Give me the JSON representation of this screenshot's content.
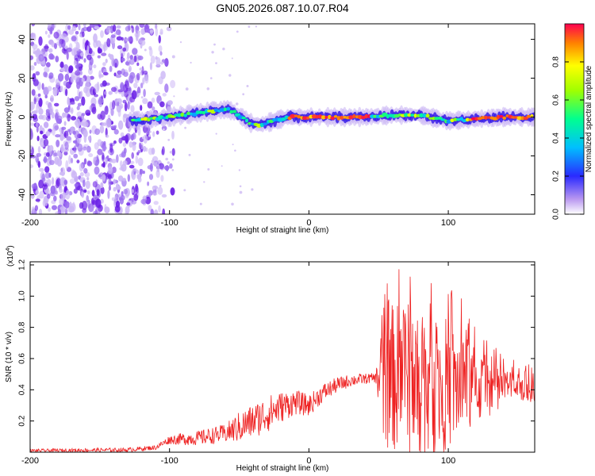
{
  "title": "GN05.2026.087.10.07.R04",
  "colors": {
    "series": "#ee2222",
    "axis": "#000000",
    "background": "#ffffff"
  },
  "chart_data": [
    {
      "type": "heatmap",
      "title": "GN05.2026.087.10.07.R04",
      "xlabel": "Height of straight line (km)",
      "ylabel": "Frequency (Hz)",
      "xlim": [
        -200,
        162
      ],
      "ylim": [
        -50,
        48
      ],
      "xticks": [
        -200,
        -100,
        0,
        100
      ],
      "yticks": [
        -40,
        -20,
        0,
        20,
        40
      ],
      "colorbar": {
        "label": "Normalized spectral amplitude",
        "range": [
          0,
          1
        ],
        "ticks": [
          0.0,
          0.2,
          0.4,
          0.6,
          0.8
        ]
      },
      "ridge": {
        "x": [
          -128,
          -110,
          -90,
          -70,
          -58,
          -50,
          -42,
          -35,
          -25,
          -15,
          -5,
          5,
          20,
          40,
          60,
          80,
          100,
          120,
          140,
          162
        ],
        "freq": [
          -2,
          -1,
          1,
          3,
          4,
          1,
          -3,
          -4,
          -2,
          0,
          0,
          0,
          0,
          0,
          1,
          1,
          -2,
          -1,
          0,
          0
        ]
      },
      "noise_region_x": [
        -200,
        -125
      ]
    },
    {
      "type": "line",
      "xlabel": "Height of straight line (km)",
      "ylabel": "SNR (10 * v/v)",
      "y_exponent_label": "(x10",
      "y_exponent": "4",
      "y_exponent_close": ")",
      "xlim": [
        -200,
        162
      ],
      "ylim": [
        0,
        1.22
      ],
      "xticks": [
        -200,
        -100,
        0,
        100
      ],
      "yticks": [
        0.2,
        0.4,
        0.6,
        0.8,
        1.0,
        1.2
      ],
      "series": [
        {
          "name": "SNR",
          "color": "#ee2222",
          "trend_x": [
            -200,
            -130,
            -110,
            -100,
            -80,
            -60,
            -40,
            -20,
            -10,
            0,
            10,
            20,
            30,
            40,
            50,
            60,
            80,
            100,
            120,
            140,
            162
          ],
          "trend_y": [
            0.01,
            0.015,
            0.03,
            0.08,
            0.09,
            0.12,
            0.2,
            0.29,
            0.32,
            0.3,
            0.38,
            0.43,
            0.46,
            0.47,
            0.48,
            0.48,
            0.45,
            0.43,
            0.42,
            0.42,
            0.42
          ],
          "spread_x": [
            -200,
            -110,
            -90,
            -60,
            -50,
            -30,
            -10,
            10,
            30,
            48,
            52,
            70,
            80,
            90,
            100,
            110,
            120,
            140,
            162
          ],
          "spread_y": [
            0.01,
            0.015,
            0.04,
            0.06,
            0.1,
            0.12,
            0.08,
            0.06,
            0.04,
            0.03,
            0.45,
            0.5,
            0.55,
            0.5,
            0.42,
            0.35,
            0.25,
            0.12,
            0.1
          ]
        }
      ]
    }
  ]
}
